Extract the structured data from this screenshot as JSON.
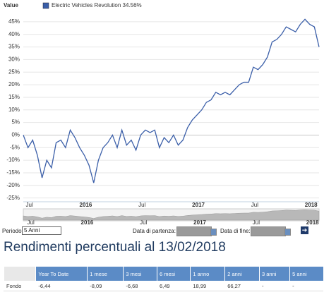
{
  "chart_data": {
    "type": "line",
    "legend_title": "Value",
    "series": [
      {
        "name": "Electric Vehicles Revolution 34.56%",
        "color": "#3a5ea8",
        "values": [
          0,
          -5,
          -2,
          -8,
          -17,
          -10,
          -13,
          -3,
          -2,
          -5,
          2,
          -1,
          -5,
          -8,
          -12,
          -19,
          -10,
          -5,
          -3,
          0,
          -5,
          2,
          -4,
          -2,
          -6,
          0,
          2,
          1,
          2,
          -5,
          -1,
          -3,
          0,
          -4,
          -2,
          3,
          6,
          8,
          10,
          13,
          14,
          17,
          16,
          17,
          16,
          18,
          20,
          21,
          21,
          27,
          26,
          28,
          31,
          37,
          38,
          40,
          43,
          42,
          41,
          44,
          46,
          44,
          43,
          35
        ]
      }
    ],
    "xlim": [
      0,
      63
    ],
    "xticks": [
      {
        "value": 1,
        "label": "Jul"
      },
      {
        "value": 13,
        "label": "2016"
      },
      {
        "value": 25,
        "label": "Jul"
      },
      {
        "value": 37,
        "label": "2017"
      },
      {
        "value": 49,
        "label": "Jul"
      },
      {
        "value": 61,
        "label": "2018"
      }
    ],
    "ylim": [
      -26.5,
      47.5
    ],
    "yticks": [
      {
        "value": -25,
        "label": "-25%"
      },
      {
        "value": -20,
        "label": "-20%"
      },
      {
        "value": -15,
        "label": "-15%"
      },
      {
        "value": -10,
        "label": "-10%"
      },
      {
        "value": -5,
        "label": "-5%"
      },
      {
        "value": 0,
        "label": "0%"
      },
      {
        "value": 5,
        "label": "5%"
      },
      {
        "value": 10,
        "label": "10%"
      },
      {
        "value": 15,
        "label": "15%"
      },
      {
        "value": 20,
        "label": "20%"
      },
      {
        "value": 25,
        "label": "25%"
      },
      {
        "value": 30,
        "label": "30%"
      },
      {
        "value": 35,
        "label": "35%"
      },
      {
        "value": 40,
        "label": "40%"
      },
      {
        "value": 45,
        "label": "45%"
      }
    ],
    "grid": true
  },
  "controls": {
    "period_label": "Periodo:",
    "period_value": "5 Anni",
    "start_label": "Data di partenza:",
    "end_label": "Data di fine:"
  },
  "heading": "Rendimenti percentuali al 13/02/2018",
  "table": {
    "header": [
      "Year To Date",
      "1 mese",
      "3 mesi",
      "6 mesi",
      "1 anno",
      "2 anni",
      "3 anni",
      "5 anni"
    ],
    "rows": [
      [
        "Fondo",
        "-6,44",
        "-8,09",
        "-6,68",
        "6,49",
        "18,99",
        "66,27",
        "-",
        "-"
      ]
    ]
  }
}
